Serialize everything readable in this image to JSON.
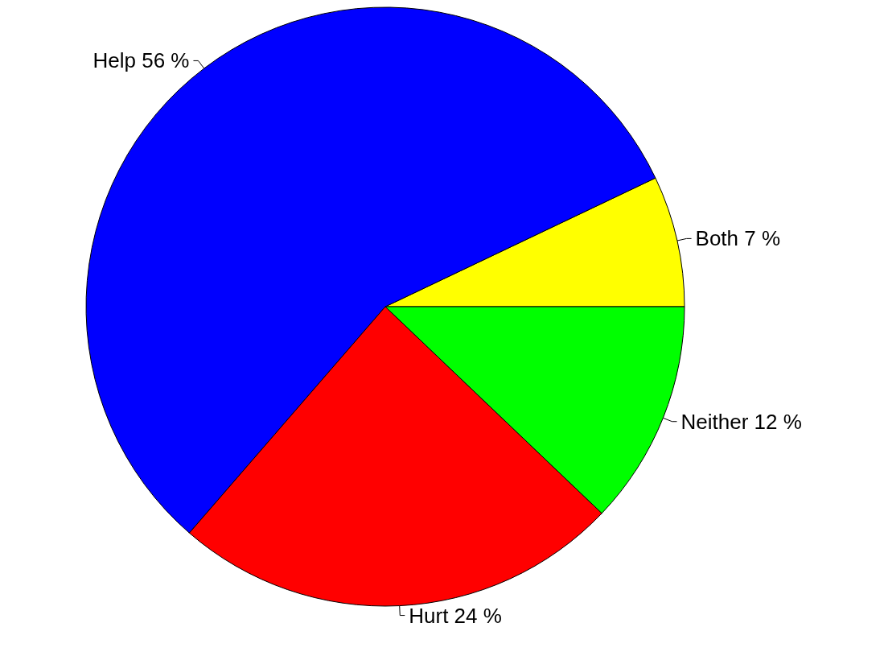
{
  "chart_data": {
    "type": "pie",
    "categories": [
      "Both 7 %",
      "Help 56 %",
      "Hurt 24 %",
      "Neither 12 %"
    ],
    "values": [
      7,
      56,
      24,
      12
    ],
    "colors": [
      "#ffff00",
      "#0000ff",
      "#ff0000",
      "#00ff00"
    ]
  }
}
